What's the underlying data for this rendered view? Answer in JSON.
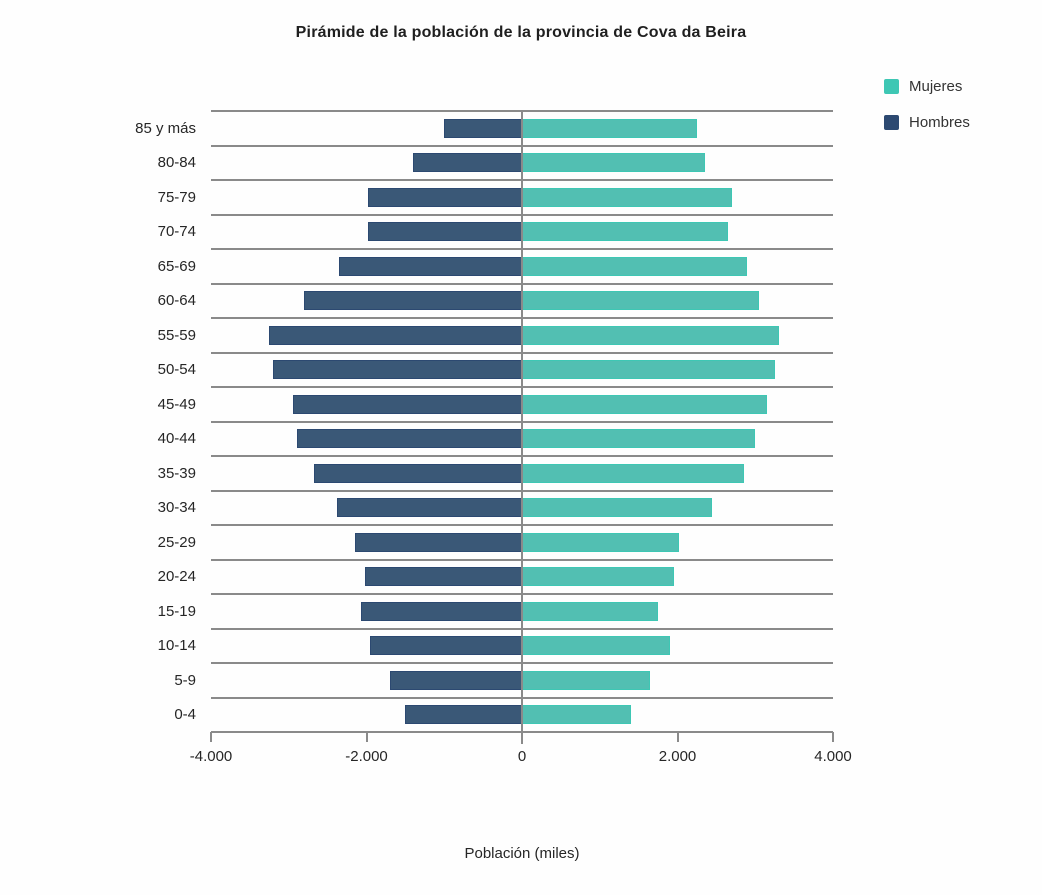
{
  "colors": {
    "mujeres_legend": "#3ec7b4",
    "mujeres_bar": "#52bfb2",
    "hombres_legend": "#2c4971",
    "hombres_bar": "#3a5877",
    "grid": "#8a8a8a",
    "text": "#262626",
    "title_text": "#1f1f1f"
  },
  "chart_data": {
    "type": "bar",
    "orientation": "horizontal",
    "subtype": "population-pyramid",
    "title": "Pirámide de la población de la provincia de Cova da Beira",
    "xlabel": "Población (miles)",
    "ylabel": "",
    "xlim": [
      -4000,
      4000
    ],
    "grid": "horizontal-rows",
    "legend_position": "top-right",
    "categories": [
      "85 y más",
      "80-84",
      "75-79",
      "70-74",
      "65-69",
      "60-64",
      "55-59",
      "50-54",
      "45-49",
      "40-44",
      "35-39",
      "30-34",
      "25-29",
      "20-24",
      "15-19",
      "10-14",
      "5-9",
      "0-4"
    ],
    "series": [
      {
        "name": "Mujeres",
        "side": "right",
        "color": "#3ec7b4",
        "values": [
          2250,
          2350,
          2700,
          2650,
          2900,
          3050,
          3300,
          3250,
          3150,
          3000,
          2850,
          2450,
          2025,
          1950,
          1750,
          1900,
          1650,
          1400
        ]
      },
      {
        "name": "Hombres",
        "side": "left",
        "color": "#2c4971",
        "values": [
          -1000,
          -1400,
          -1975,
          -1975,
          -2350,
          -2800,
          -3250,
          -3200,
          -2950,
          -2900,
          -2675,
          -2375,
          -2150,
          -2025,
          -2075,
          -1950,
          -1700,
          -1500
        ]
      }
    ],
    "x_ticks": [
      {
        "value": -4000,
        "label": "-4.000"
      },
      {
        "value": -2000,
        "label": "-2.000"
      },
      {
        "value": 0,
        "label": "0"
      },
      {
        "value": 2000,
        "label": "2.000"
      },
      {
        "value": 4000,
        "label": "4.000"
      }
    ]
  }
}
